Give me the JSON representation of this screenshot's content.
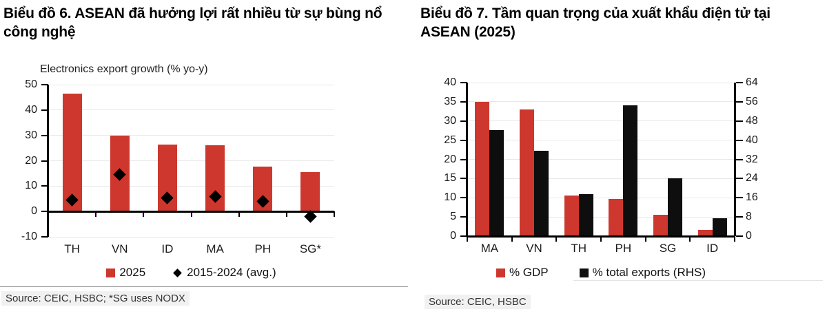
{
  "panels": [
    {
      "title": "Biểu đồ 6. ASEAN đã hưởng lợi rất nhiều từ sự bùng nổ công nghệ",
      "source": "Source: CEIC, HSBC; *SG uses NODX"
    },
    {
      "title": "Biểu đồ 7. Tầm quan trọng của xuất khẩu điện tử tại ASEAN (2025)",
      "source": "Source: CEIC, HSBC"
    }
  ],
  "colors": {
    "bar_red": "#cd372d",
    "bar_black": "#0e0e0e",
    "gridline": "#e8e8e8",
    "source_highlight": "#f1f1f1"
  },
  "chart_data": [
    {
      "type": "bar",
      "title": "Electronics export growth (% yo-y)",
      "categories": [
        "TH",
        "VN",
        "ID",
        "MA",
        "PH",
        "SG*"
      ],
      "series": [
        {
          "name": "2025",
          "style": "bar",
          "color": "#cd372d",
          "values": [
            46.5,
            29.8,
            26.4,
            26.0,
            17.6,
            15.4
          ]
        },
        {
          "name": "2015-2024 (avg.)",
          "style": "diamond",
          "color": "#000000",
          "values": [
            4.6,
            14.5,
            5.4,
            5.9,
            4.1,
            -2.0
          ]
        }
      ],
      "ylim": [
        -10,
        50
      ],
      "yticks": [
        -10,
        0,
        10,
        20,
        30,
        40,
        50
      ],
      "grid": true,
      "legend_position": "bottom"
    },
    {
      "type": "bar",
      "title": "",
      "categories": [
        "MA",
        "VN",
        "TH",
        "PH",
        "SG",
        "ID"
      ],
      "series": [
        {
          "name": "% GDP",
          "style": "bar",
          "axis": "left",
          "color": "#cd372d",
          "values": [
            35.0,
            33.0,
            10.5,
            9.6,
            5.5,
            1.7
          ]
        },
        {
          "name": "% total exports (RHS)",
          "style": "bar",
          "axis": "right",
          "color": "#0e0e0e",
          "values": [
            44.2,
            35.5,
            17.6,
            54.4,
            24.2,
            7.4
          ]
        }
      ],
      "ylim_left": [
        0,
        40
      ],
      "yticks_left": [
        0,
        5,
        10,
        15,
        20,
        25,
        30,
        35,
        40
      ],
      "ylim_right": [
        0,
        64
      ],
      "yticks_right": [
        0,
        8,
        16,
        24,
        32,
        40,
        48,
        56,
        64
      ],
      "grid": true,
      "legend_position": "bottom"
    }
  ]
}
